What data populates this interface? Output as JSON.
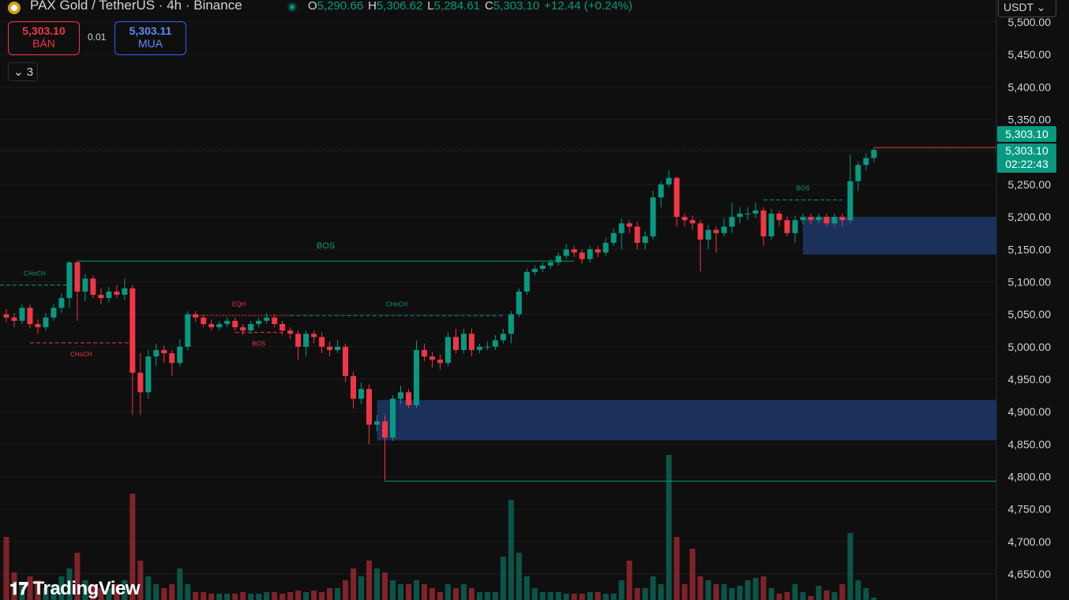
{
  "header": {
    "title": "PAX Gold / TetherUS · 4h · Binance",
    "o_key": "O",
    "o": "5,290.66",
    "h_key": "H",
    "h": "5,306.62",
    "l_key": "L",
    "l": "5,284.61",
    "c_key": "C",
    "c": "5,303.10",
    "change": "+12.44 (+0.24%)",
    "sell_price": "5,303.10",
    "sell_label": "BÁN",
    "spread": "0.01",
    "buy_price": "5,303.11",
    "buy_label": "MUA",
    "indicators_count": "3",
    "currency": "USDT",
    "tag_price": "5,303.10",
    "tag_price2": "5,303.10",
    "countdown": "02:22:43",
    "brand": "TradingView"
  },
  "chart_data": {
    "type": "candlestick",
    "up_color": "#089981",
    "down_color": "#f23645",
    "ylim": [
      4610,
      5534
    ],
    "yticks": [
      {
        "value": 5500,
        "label": "5,500.00"
      },
      {
        "value": 5450,
        "label": "5,450.00"
      },
      {
        "value": 5400,
        "label": "5,400.00"
      },
      {
        "value": 5350,
        "label": "5,350.00"
      },
      {
        "value": 5300,
        "label": "5,300.00"
      },
      {
        "value": 5250,
        "label": "5,250.00"
      },
      {
        "value": 5200,
        "label": "5,200.00"
      },
      {
        "value": 5150,
        "label": "5,150.00"
      },
      {
        "value": 5100,
        "label": "5,100.00"
      },
      {
        "value": 5050,
        "label": "5,050.00"
      },
      {
        "value": 5000,
        "label": "5,000.00"
      },
      {
        "value": 4950,
        "label": "4,950.00"
      },
      {
        "value": 4900,
        "label": "4,900.00"
      },
      {
        "value": 4850,
        "label": "4,850.00"
      },
      {
        "value": 4800,
        "label": "4,800.00"
      },
      {
        "value": 4750,
        "label": "4,750.00"
      },
      {
        "value": 4700,
        "label": "4,700.00"
      },
      {
        "value": 4650,
        "label": "4,650.00"
      }
    ],
    "grid": true,
    "last_price": 5303.1,
    "vlim": [
      0,
      250
    ],
    "candles": [
      [
        5050,
        5058,
        5038,
        5045
      ],
      [
        5045,
        5052,
        5030,
        5040
      ],
      [
        5040,
        5066,
        5035,
        5060
      ],
      [
        5060,
        5065,
        5028,
        5035
      ],
      [
        5035,
        5042,
        5020,
        5030
      ],
      [
        5030,
        5052,
        5025,
        5045
      ],
      [
        5045,
        5066,
        5040,
        5060
      ],
      [
        5060,
        5082,
        5052,
        5075
      ],
      [
        5075,
        5132,
        5060,
        5130
      ],
      [
        5130,
        5132,
        5040,
        5085
      ],
      [
        5085,
        5112,
        5070,
        5105
      ],
      [
        5105,
        5110,
        5075,
        5080
      ],
      [
        5080,
        5090,
        5065,
        5075
      ],
      [
        5075,
        5092,
        5068,
        5085
      ],
      [
        5085,
        5095,
        5075,
        5080
      ],
      [
        5080,
        5105,
        5072,
        5090
      ],
      [
        5090,
        5095,
        4895,
        4960
      ],
      [
        4960,
        4990,
        4895,
        4930
      ],
      [
        4930,
        4995,
        4920,
        4985
      ],
      [
        4985,
        5005,
        4970,
        4995
      ],
      [
        4995,
        5002,
        4975,
        4990
      ],
      [
        4990,
        4995,
        4955,
        4975
      ],
      [
        4975,
        5012,
        4970,
        5000
      ],
      [
        5000,
        5055,
        4995,
        5050
      ],
      [
        5050,
        5055,
        5038,
        5045
      ],
      [
        5045,
        5050,
        5030,
        5035
      ],
      [
        5035,
        5042,
        5025,
        5030
      ],
      [
        5030,
        5040,
        5025,
        5035
      ],
      [
        5035,
        5045,
        5030,
        5040
      ],
      [
        5040,
        5045,
        5025,
        5030
      ],
      [
        5030,
        5035,
        5018,
        5025
      ],
      [
        5025,
        5040,
        5020,
        5035
      ],
      [
        5035,
        5045,
        5030,
        5040
      ],
      [
        5040,
        5052,
        5035,
        5045
      ],
      [
        5045,
        5050,
        5030,
        5035
      ],
      [
        5035,
        5040,
        5018,
        5025
      ],
      [
        5025,
        5030,
        5012,
        5020
      ],
      [
        5020,
        5025,
        4980,
        5000
      ],
      [
        5000,
        5025,
        4985,
        5020
      ],
      [
        5020,
        5025,
        5005,
        5015
      ],
      [
        5015,
        5022,
        4990,
        5000
      ],
      [
        5000,
        5008,
        4985,
        4995
      ],
      [
        4995,
        5010,
        4990,
        5000
      ],
      [
        5000,
        5005,
        4945,
        4955
      ],
      [
        4955,
        4962,
        4905,
        4920
      ],
      [
        4920,
        4945,
        4912,
        4935
      ],
      [
        4935,
        4942,
        4850,
        4880
      ],
      [
        4880,
        4895,
        4870,
        4885
      ],
      [
        4885,
        4895,
        4793,
        4860
      ],
      [
        4860,
        4925,
        4855,
        4920
      ],
      [
        4920,
        4940,
        4912,
        4930
      ],
      [
        4930,
        4935,
        4905,
        4910
      ],
      [
        4910,
        5010,
        4905,
        4995
      ],
      [
        4995,
        5005,
        4978,
        4985
      ],
      [
        4985,
        4992,
        4968,
        4980
      ],
      [
        4980,
        4988,
        4965,
        4975
      ],
      [
        4975,
        5022,
        4970,
        5015
      ],
      [
        5015,
        5028,
        4990,
        4995
      ],
      [
        4995,
        5028,
        4990,
        5020
      ],
      [
        5020,
        5028,
        4985,
        4995
      ],
      [
        4995,
        5005,
        4990,
        5000
      ],
      [
        5000,
        5008,
        4995,
        5000
      ],
      [
        5000,
        5018,
        4995,
        5010
      ],
      [
        5010,
        5028,
        5005,
        5020
      ],
      [
        5020,
        5055,
        5005,
        5050
      ],
      [
        5050,
        5090,
        5045,
        5085
      ],
      [
        5085,
        5120,
        5080,
        5115
      ],
      [
        5115,
        5125,
        5110,
        5120
      ],
      [
        5120,
        5130,
        5115,
        5125
      ],
      [
        5125,
        5135,
        5120,
        5130
      ],
      [
        5130,
        5145,
        5125,
        5140
      ],
      [
        5140,
        5158,
        5135,
        5150
      ],
      [
        5150,
        5155,
        5138,
        5145
      ],
      [
        5145,
        5150,
        5128,
        5135
      ],
      [
        5135,
        5155,
        5130,
        5150
      ],
      [
        5150,
        5155,
        5138,
        5145
      ],
      [
        5145,
        5168,
        5140,
        5160
      ],
      [
        5160,
        5182,
        5155,
        5175
      ],
      [
        5175,
        5198,
        5150,
        5190
      ],
      [
        5190,
        5195,
        5175,
        5185
      ],
      [
        5185,
        5192,
        5150,
        5160
      ],
      [
        5160,
        5178,
        5150,
        5170
      ],
      [
        5170,
        5240,
        5165,
        5230
      ],
      [
        5230,
        5255,
        5215,
        5250
      ],
      [
        5250,
        5272,
        5245,
        5260
      ],
      [
        5260,
        5262,
        5185,
        5200
      ],
      [
        5200,
        5205,
        5185,
        5195
      ],
      [
        5195,
        5202,
        5180,
        5190
      ],
      [
        5190,
        5195,
        5116,
        5165
      ],
      [
        5165,
        5188,
        5150,
        5180
      ],
      [
        5180,
        5185,
        5145,
        5175
      ],
      [
        5175,
        5198,
        5170,
        5185
      ],
      [
        5185,
        5222,
        5175,
        5200
      ],
      [
        5200,
        5215,
        5190,
        5205
      ],
      [
        5205,
        5215,
        5195,
        5205
      ],
      [
        5205,
        5222,
        5198,
        5210
      ],
      [
        5210,
        5215,
        5155,
        5170
      ],
      [
        5170,
        5212,
        5165,
        5205
      ],
      [
        5205,
        5210,
        5185,
        5195
      ],
      [
        5195,
        5200,
        5170,
        5175
      ],
      [
        5175,
        5202,
        5160,
        5195
      ],
      [
        5195,
        5205,
        5188,
        5200
      ],
      [
        5200,
        5205,
        5188,
        5195
      ],
      [
        5195,
        5205,
        5190,
        5200
      ],
      [
        5200,
        5205,
        5185,
        5190
      ],
      [
        5190,
        5205,
        5185,
        5200
      ],
      [
        5200,
        5205,
        5185,
        5195
      ],
      [
        5195,
        5296,
        5190,
        5255
      ],
      [
        5255,
        5285,
        5240,
        5280
      ],
      [
        5280,
        5298,
        5272,
        5290.66
      ],
      [
        5290.66,
        5306.62,
        5284.61,
        5303.1
      ]
    ],
    "volumes": [
      80,
      35,
      20,
      30,
      25,
      15,
      20,
      30,
      40,
      60,
      25,
      20,
      15,
      15,
      20,
      25,
      135,
      50,
      30,
      20,
      15,
      20,
      40,
      20,
      10,
      10,
      8,
      8,
      8,
      8,
      10,
      8,
      8,
      10,
      10,
      8,
      10,
      12,
      10,
      12,
      10,
      15,
      15,
      25,
      40,
      30,
      50,
      40,
      35,
      25,
      20,
      20,
      25,
      20,
      15,
      10,
      20,
      15,
      20,
      15,
      10,
      10,
      10,
      55,
      127,
      60,
      30,
      15,
      10,
      10,
      10,
      8,
      8,
      8,
      10,
      10,
      8,
      8,
      25,
      50,
      15,
      15,
      30,
      20,
      184,
      80,
      20,
      65,
      30,
      25,
      20,
      20,
      15,
      18,
      25,
      28,
      30,
      15,
      8,
      10,
      20,
      10,
      5,
      18,
      12,
      10,
      20,
      85,
      25,
      15,
      3
    ],
    "levels": [
      {
        "label": "CHoCH",
        "price": 5095,
        "from": -1,
        "to": 8,
        "color": "#089981",
        "style": "dashed",
        "position": "above"
      },
      {
        "label": "CHoCH",
        "price": 5006,
        "from": 3,
        "to": 16,
        "color": "#f23645",
        "style": "dashed",
        "position": "below"
      },
      {
        "label": "EQH",
        "price": 5048,
        "from": 23,
        "to": 36,
        "color": "#f23645",
        "style": "dotted",
        "position": "above"
      },
      {
        "label": "BOS",
        "price": 5022,
        "from": 29,
        "to": 35,
        "color": "#f23645",
        "style": "dashed",
        "position": "below"
      },
      {
        "label": "CHoCH",
        "price": 5048,
        "from": 36,
        "to": 63,
        "color": "#089981",
        "style": "dashed",
        "position": "above"
      },
      {
        "label": "BOS",
        "price": 5132,
        "from": 9,
        "to": 72,
        "color": "#089981",
        "style": "solid",
        "position": "above"
      },
      {
        "label": "BOS",
        "price": 5226,
        "from": 96,
        "to": 106,
        "color": "#089981",
        "style": "dashed",
        "position": "above"
      }
    ],
    "support_line": {
      "price": 4793,
      "from": 48,
      "color": "#089981"
    },
    "zones": [
      {
        "top": 4918,
        "bottom": 4856,
        "from": 47,
        "color": "#1e3a6e"
      },
      {
        "top": 5200,
        "bottom": 5142,
        "from": 101,
        "color": "#1e3a6e"
      }
    ]
  }
}
